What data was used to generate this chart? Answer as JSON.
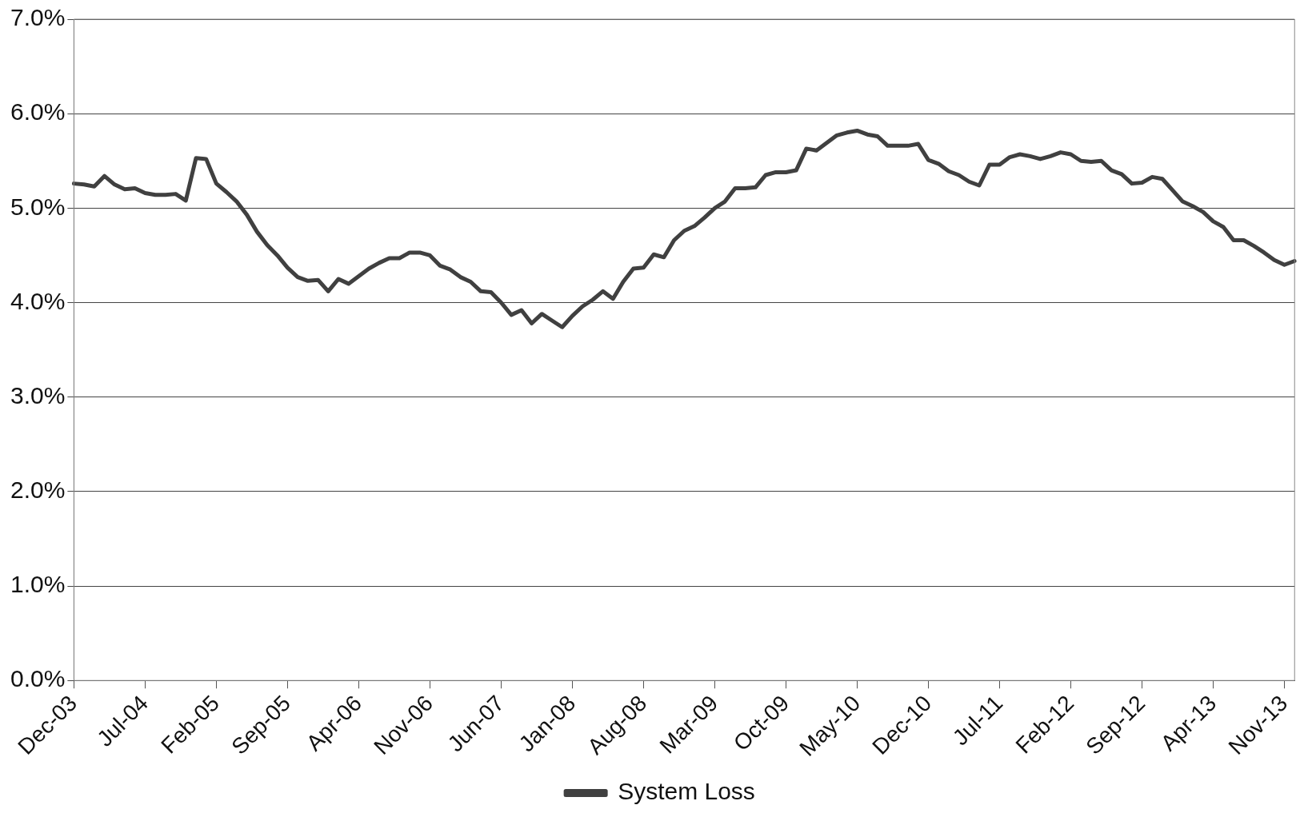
{
  "chart_data": {
    "type": "line",
    "categories": [
      "Dec-03",
      null,
      null,
      null,
      null,
      null,
      null,
      "Jul-04",
      null,
      null,
      null,
      null,
      null,
      null,
      "Feb-05",
      null,
      null,
      null,
      null,
      null,
      null,
      "Sep-05",
      null,
      null,
      null,
      null,
      null,
      null,
      "Apr-06",
      null,
      null,
      null,
      null,
      null,
      null,
      "Nov-06",
      null,
      null,
      null,
      null,
      null,
      null,
      "Jun-07",
      null,
      null,
      null,
      null,
      null,
      null,
      "Jan-08",
      null,
      null,
      null,
      null,
      null,
      null,
      "Aug-08",
      null,
      null,
      null,
      null,
      null,
      null,
      "Mar-09",
      null,
      null,
      null,
      null,
      null,
      null,
      "Oct-09",
      null,
      null,
      null,
      null,
      null,
      null,
      "May-10",
      null,
      null,
      null,
      null,
      null,
      null,
      "Dec-10",
      null,
      null,
      null,
      null,
      null,
      null,
      "Jul-11",
      null,
      null,
      null,
      null,
      null,
      null,
      "Feb-12",
      null,
      null,
      null,
      null,
      null,
      null,
      "Sep-12",
      null,
      null,
      null,
      null,
      null,
      null,
      "Apr-13",
      null,
      null,
      null,
      null,
      null,
      null,
      "Nov-13",
      null
    ],
    "series": [
      {
        "name": "System Loss",
        "color": "#404040",
        "values": [
          5.26,
          5.25,
          5.23,
          5.34,
          5.25,
          5.2,
          5.21,
          5.16,
          5.14,
          5.14,
          5.15,
          5.08,
          5.53,
          5.52,
          5.26,
          5.17,
          5.07,
          4.93,
          4.75,
          4.61,
          4.5,
          4.37,
          4.27,
          4.23,
          4.24,
          4.12,
          4.25,
          4.2,
          4.28,
          4.36,
          4.42,
          4.47,
          4.47,
          4.53,
          4.53,
          4.5,
          4.39,
          4.35,
          4.27,
          4.22,
          4.12,
          4.11,
          4.0,
          3.87,
          3.92,
          3.78,
          3.88,
          3.81,
          3.74,
          3.86,
          3.96,
          4.03,
          4.12,
          4.04,
          4.22,
          4.36,
          4.37,
          4.51,
          4.48,
          4.66,
          4.76,
          4.81,
          4.9,
          5.0,
          5.07,
          5.21,
          5.21,
          5.22,
          5.35,
          5.38,
          5.38,
          5.4,
          5.63,
          5.61,
          5.69,
          5.77,
          5.8,
          5.82,
          5.78,
          5.76,
          5.66,
          5.66,
          5.66,
          5.68,
          5.51,
          5.47,
          5.39,
          5.35,
          5.28,
          5.24,
          5.46,
          5.46,
          5.54,
          5.57,
          5.55,
          5.52,
          5.55,
          5.59,
          5.57,
          5.5,
          5.49,
          5.5,
          5.4,
          5.36,
          5.26,
          5.27,
          5.33,
          5.31,
          5.19,
          5.07,
          5.02,
          4.96,
          4.86,
          4.8,
          4.66,
          4.66,
          4.6,
          4.53,
          4.45,
          4.4,
          4.44
        ]
      }
    ],
    "ylim": [
      0,
      7
    ],
    "yticks": [
      {
        "value": 0,
        "label": "0.0%"
      },
      {
        "value": 1,
        "label": "1.0%"
      },
      {
        "value": 2,
        "label": "2.0%"
      },
      {
        "value": 3,
        "label": "3.0%"
      },
      {
        "value": 4,
        "label": "4.0%"
      },
      {
        "value": 5,
        "label": "5.0%"
      },
      {
        "value": 6,
        "label": "6.0%"
      },
      {
        "value": 7,
        "label": "7.0%"
      }
    ],
    "grid": "y",
    "legend": "bottom",
    "marker": "none",
    "line_style": "solid"
  }
}
